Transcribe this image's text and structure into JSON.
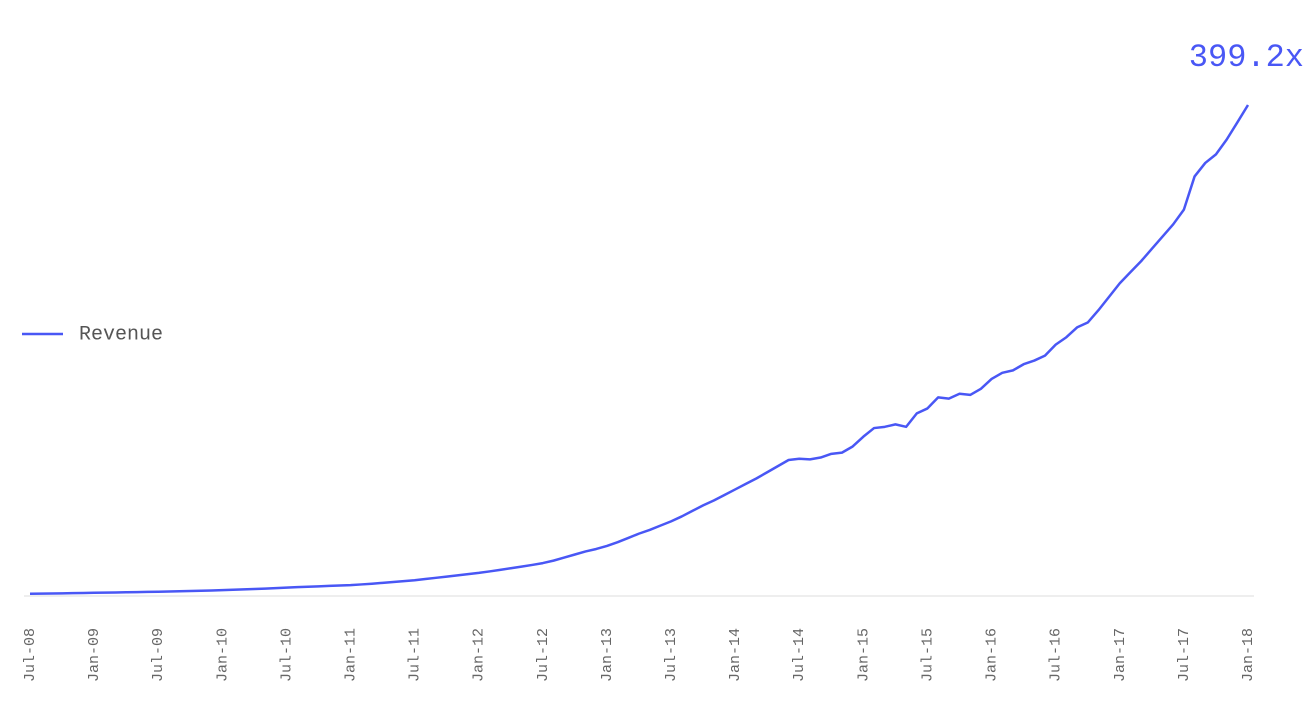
{
  "chart_data": {
    "type": "line",
    "categories": [
      "Jul-08",
      null,
      null,
      null,
      null,
      null,
      "Jan-09",
      null,
      null,
      null,
      null,
      null,
      "Jul-09",
      null,
      null,
      null,
      null,
      null,
      "Jan-10",
      null,
      null,
      null,
      null,
      null,
      "Jul-10",
      null,
      null,
      null,
      null,
      null,
      "Jan-11",
      null,
      null,
      null,
      null,
      null,
      "Jul-11",
      null,
      null,
      null,
      null,
      null,
      "Jan-12",
      null,
      null,
      null,
      null,
      null,
      "Jul-12",
      null,
      null,
      null,
      null,
      null,
      "Jan-13",
      null,
      null,
      null,
      null,
      null,
      "Jul-13",
      null,
      null,
      null,
      null,
      null,
      "Jan-14",
      null,
      null,
      null,
      null,
      null,
      "Jul-14",
      null,
      null,
      null,
      null,
      null,
      "Jan-15",
      null,
      null,
      null,
      null,
      null,
      "Jul-15",
      null,
      null,
      null,
      null,
      null,
      "Jan-16",
      null,
      null,
      null,
      null,
      null,
      "Jul-16",
      null,
      null,
      null,
      null,
      null,
      "Jan-17",
      null,
      null,
      null,
      null,
      null,
      "Jul-17",
      null,
      null,
      null,
      null,
      null,
      "Jan-18"
    ],
    "series": [
      {
        "name": "Revenue",
        "color": "#4957f5",
        "values": [
          1.0,
          1.1,
          1.2,
          1.3,
          1.5,
          1.6,
          1.8,
          1.9,
          2.0,
          2.2,
          2.3,
          2.5,
          2.7,
          2.9,
          3.1,
          3.3,
          3.5,
          3.7,
          4.0,
          4.3,
          4.6,
          4.9,
          5.2,
          5.6,
          6.0,
          6.4,
          6.7,
          7.0,
          7.4,
          7.7,
          8.0,
          8.6,
          9.2,
          9.9,
          10.6,
          11.3,
          12,
          13,
          14,
          15,
          16,
          17,
          18,
          19.2,
          20.5,
          21.8,
          23.1,
          24.5,
          26,
          28,
          30.5,
          33,
          35.5,
          37.5,
          40,
          43,
          46.5,
          50,
          53,
          56.5,
          60,
          64,
          68.5,
          73,
          77,
          81.5,
          86,
          90.5,
          95,
          100,
          105,
          110,
          111,
          110.5,
          112,
          115,
          116,
          121,
          129,
          136,
          137,
          139,
          137,
          148,
          152,
          161,
          160,
          164,
          163,
          168,
          176,
          181,
          183,
          188,
          191,
          195,
          204,
          210,
          218,
          222,
          232,
          243,
          254,
          263,
          272,
          282,
          292,
          302,
          314,
          341,
          352,
          359,
          371,
          385,
          399.2
        ],
        "value_labels": [
          null,
          null,
          null,
          null,
          null,
          null,
          null,
          null,
          null,
          null,
          null,
          null,
          null,
          null,
          null,
          null,
          null,
          null,
          null,
          null,
          null,
          null,
          null,
          null,
          null,
          null,
          null,
          null,
          null,
          null,
          null,
          null,
          null,
          null,
          null,
          null,
          null,
          null,
          null,
          null,
          null,
          null,
          null,
          null,
          null,
          null,
          null,
          null,
          null,
          null,
          null,
          null,
          null,
          null,
          null,
          null,
          null,
          null,
          null,
          null,
          null,
          null,
          null,
          null,
          null,
          null,
          null,
          null,
          null,
          null,
          null,
          null,
          null,
          null,
          null,
          null,
          null,
          null,
          null,
          null,
          null,
          null,
          null,
          null,
          null,
          null,
          null,
          null,
          null,
          null,
          null,
          null,
          null,
          null,
          null,
          null,
          null,
          null,
          null,
          null,
          null,
          null,
          null,
          null,
          null,
          null,
          null,
          null,
          null,
          null,
          null,
          null,
          null,
          null,
          "399.2x"
        ]
      }
    ],
    "legend": "left"
  }
}
